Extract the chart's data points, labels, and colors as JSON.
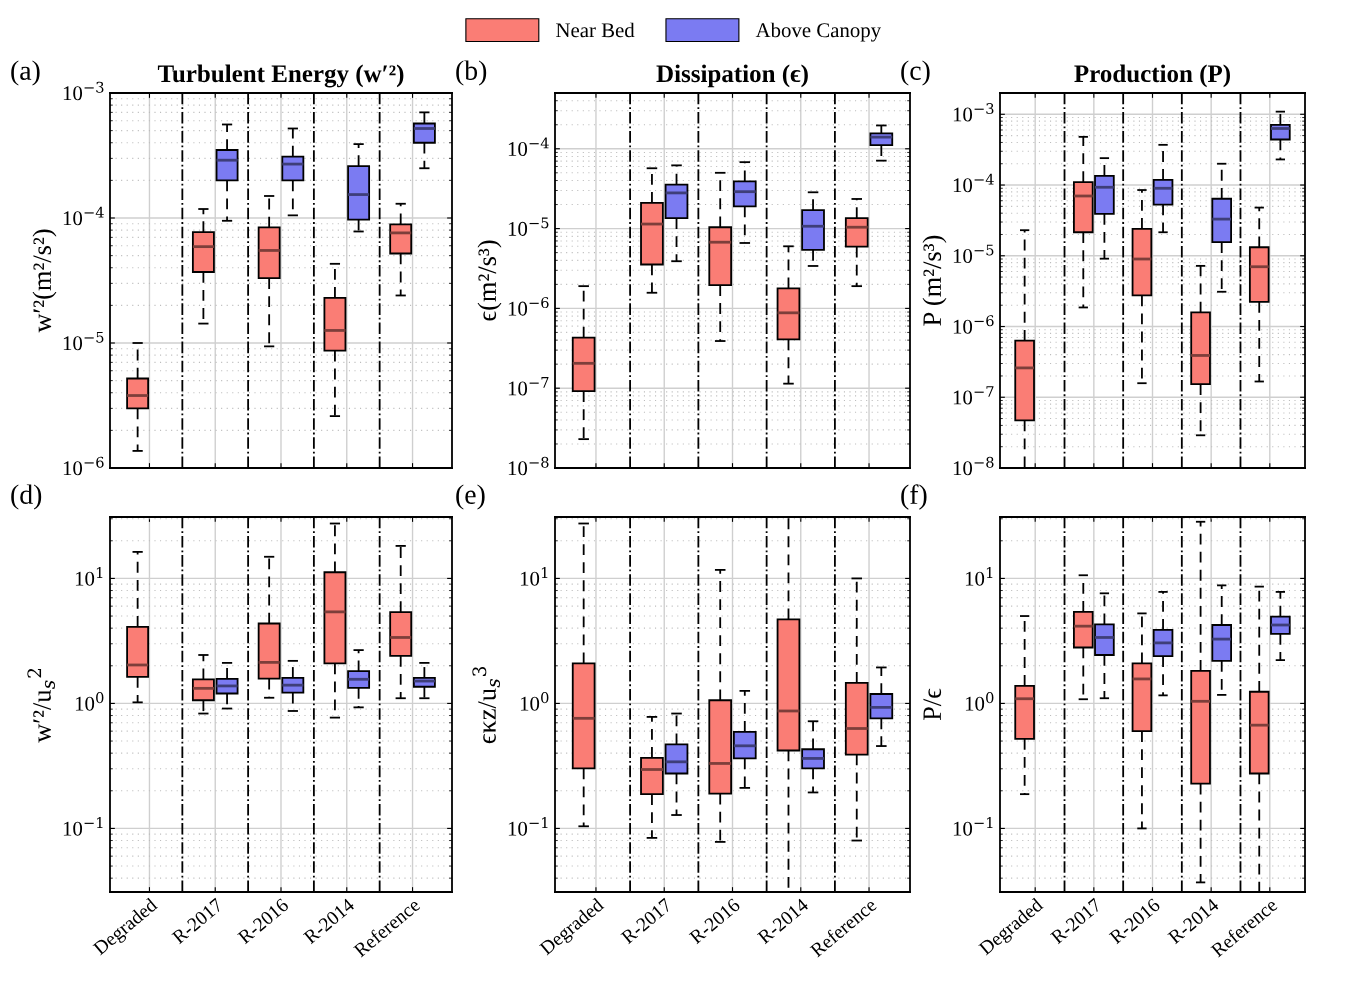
{
  "chart_data": [
    {
      "type": "box",
      "title": "Turbulent Energy (w′²)",
      "ylabel": "w′²(m²/s²)",
      "annotations": [
        "(a)"
      ],
      "categories": [
        null,
        null,
        null,
        null,
        null
      ],
      "log": true,
      "grid": true,
      "legend": "top",
      "tick_labels": "y",
      "ylim": [
        1e-06,
        0.001
      ],
      "yticks": [
        {
          "value": 1e-06,
          "label": "10$^{−6}$"
        },
        {
          "value": 1e-05,
          "label": "10$^{−5}$"
        },
        {
          "value": 0.0001,
          "label": "10$^{−4}$"
        },
        {
          "value": 0.001,
          "label": "10$^{−3}$"
        }
      ],
      "series": [
        {
          "name": "Near Bed",
          "color": "#fa7d75",
          "boxes": [
            {
              "low": 1.37e-06,
              "q1": 3e-06,
              "median": 3.8e-06,
              "q3": 5.2e-06,
              "high": 1e-05
            },
            {
              "low": 1.43e-05,
              "q1": 3.7e-05,
              "median": 5.9e-05,
              "q3": 7.7e-05,
              "high": 0.000118
            },
            {
              "low": 9.4e-06,
              "q1": 3.3e-05,
              "median": 5.5e-05,
              "q3": 8.4e-05,
              "high": 0.00015
            },
            {
              "low": 2.6e-06,
              "q1": 8.7e-06,
              "median": 1.26e-05,
              "q3": 2.3e-05,
              "high": 4.3e-05
            },
            {
              "low": 2.4e-05,
              "q1": 5.2e-05,
              "median": 7.6e-05,
              "q3": 8.9e-05,
              "high": 0.00013
            }
          ]
        },
        {
          "name": "Above Canopy",
          "color": "#7b7bf2",
          "boxes": [
            null,
            {
              "low": 9.5e-05,
              "q1": 0.0002,
              "median": 0.00029,
              "q3": 0.00035,
              "high": 0.00056
            },
            {
              "low": 0.000105,
              "q1": 0.0002,
              "median": 0.00027,
              "q3": 0.00031,
              "high": 0.00052
            },
            {
              "low": 7.8e-05,
              "q1": 9.7e-05,
              "median": 0.000154,
              "q3": 0.00026,
              "high": 0.00039
            },
            {
              "low": 0.00025,
              "q1": 0.0004,
              "median": 0.00052,
              "q3": 0.00057,
              "high": 0.0007
            }
          ]
        }
      ]
    },
    {
      "type": "box",
      "title": "Dissipation (ϵ)",
      "ylabel": "ϵ(m²/s³)",
      "annotations": [
        "(b)"
      ],
      "categories": [
        null,
        null,
        null,
        null,
        null
      ],
      "log": true,
      "grid": true,
      "tick_labels": "y",
      "ylim": [
        1e-08,
        0.0005
      ],
      "yticks": [
        {
          "value": 1e-08,
          "label": "10$^{−8}$"
        },
        {
          "value": 1e-07,
          "label": "10$^{−7}$"
        },
        {
          "value": 1e-06,
          "label": "10$^{−6}$"
        },
        {
          "value": 1e-05,
          "label": "10$^{−5}$"
        },
        {
          "value": 0.0001,
          "label": "10$^{−4}$"
        }
      ],
      "series": [
        {
          "color": "#fa7d75",
          "boxes": [
            {
              "low": 2.3e-08,
              "q1": 9.2e-08,
              "median": 2.05e-07,
              "q3": 4.3e-07,
              "high": 1.9e-06
            },
            {
              "low": 1.57e-06,
              "q1": 3.55e-06,
              "median": 1.14e-05,
              "q3": 2.1e-05,
              "high": 5.7e-05
            },
            {
              "low": 3.9e-07,
              "q1": 1.96e-06,
              "median": 6.75e-06,
              "q3": 1.04e-05,
              "high": 5e-05
            },
            {
              "low": 1.14e-07,
              "q1": 4.1e-07,
              "median": 8.8e-07,
              "q3": 1.78e-06,
              "high": 6e-06
            },
            {
              "low": 1.9e-06,
              "q1": 5.95e-06,
              "median": 1.04e-05,
              "q3": 1.35e-05,
              "high": 2.35e-05
            }
          ]
        },
        {
          "color": "#7b7bf2",
          "boxes": [
            null,
            {
              "low": 3.9e-06,
              "q1": 1.35e-05,
              "median": 2.8e-05,
              "q3": 3.55e-05,
              "high": 6.2e-05
            },
            {
              "low": 6.6e-06,
              "q1": 1.9e-05,
              "median": 2.9e-05,
              "q3": 3.9e-05,
              "high": 6.8e-05
            },
            {
              "low": 3.4e-06,
              "q1": 5.4e-06,
              "median": 1.07e-05,
              "q3": 1.7e-05,
              "high": 2.85e-05
            },
            {
              "low": 7.1e-05,
              "q1": 0.000111,
              "median": 0.00014,
              "q3": 0.000156,
              "high": 0.000196
            }
          ]
        }
      ]
    },
    {
      "type": "box",
      "title": "Production (P)",
      "ylabel": "P (m²/s³)",
      "annotations": [
        "(c)"
      ],
      "categories": [
        null,
        null,
        null,
        null,
        null
      ],
      "log": true,
      "grid": true,
      "tick_labels": "y",
      "ylim": [
        1e-08,
        0.002
      ],
      "yticks": [
        {
          "value": 1e-08,
          "label": "10$^{−8}$"
        },
        {
          "value": 1e-07,
          "label": "10$^{−7}$"
        },
        {
          "value": 1e-06,
          "label": "10$^{−6}$"
        },
        {
          "value": 1e-05,
          "label": "10$^{−5}$"
        },
        {
          "value": 0.0001,
          "label": "10$^{−4}$"
        },
        {
          "value": 0.001,
          "label": "10$^{−3}$"
        }
      ],
      "series": [
        {
          "color": "#fa7d75",
          "boxes": [
            {
              "low": 1e-08,
              "q1": 4.7e-08,
              "median": 2.6e-07,
              "q3": 6.3e-07,
              "high": 2.3e-05
            },
            {
              "low": 1.86e-06,
              "q1": 2.15e-05,
              "median": 7e-05,
              "q3": 0.00011,
              "high": 0.00048
            },
            {
              "low": 1.58e-07,
              "q1": 2.75e-06,
              "median": 9e-06,
              "q3": 2.4e-05,
              "high": 8.5e-05
            },
            {
              "low": 2.9e-08,
              "q1": 1.53e-07,
              "median": 3.9e-07,
              "q3": 1.58e-06,
              "high": 7.2e-06
            },
            {
              "low": 1.67e-07,
              "q1": 2.23e-06,
              "median": 7e-06,
              "q3": 1.32e-05,
              "high": 4.8e-05
            }
          ]
        },
        {
          "color": "#7b7bf2",
          "boxes": [
            null,
            {
              "low": 9.1e-06,
              "q1": 3.9e-05,
              "median": 9.3e-05,
              "q3": 0.000135,
              "high": 0.00024
            },
            {
              "low": 2.15e-05,
              "q1": 5.3e-05,
              "median": 9e-05,
              "q3": 0.000118,
              "high": 0.00037
            },
            {
              "low": 3.1e-06,
              "q1": 1.56e-05,
              "median": 3.3e-05,
              "q3": 6.4e-05,
              "high": 0.0002
            },
            {
              "low": 0.00023,
              "q1": 0.00044,
              "median": 0.00063,
              "q3": 0.00071,
              "high": 0.00109
            }
          ]
        }
      ]
    },
    {
      "type": "box",
      "ylabel": "w′²/u$_{s}$$^{2}$",
      "annotations": [
        "(d)"
      ],
      "categories": [
        "Degraded",
        "R-2017",
        "R-2016",
        "R-2014",
        "Reference"
      ],
      "log": true,
      "grid": true,
      "ylim": [
        0.031,
        31
      ],
      "yticks": [
        {
          "value": 0.1,
          "label": "10$^{−1}$"
        },
        {
          "value": 1,
          "label": "10$^{0}$"
        },
        {
          "value": 10,
          "label": "10$^{1}$"
        }
      ],
      "series": [
        {
          "color": "#fa7d75",
          "boxes": [
            {
              "low": 1.02,
              "q1": 1.63,
              "median": 2.03,
              "q3": 4.1,
              "high": 16.3
            },
            {
              "low": 0.83,
              "q1": 1.06,
              "median": 1.32,
              "q3": 1.56,
              "high": 2.44
            },
            {
              "low": 1.11,
              "q1": 1.58,
              "median": 2.13,
              "q3": 4.36,
              "high": 14.9
            },
            {
              "low": 0.77,
              "q1": 2.09,
              "median": 5.4,
              "q3": 11.2,
              "high": 27.5
            },
            {
              "low": 1.1,
              "q1": 2.4,
              "median": 3.37,
              "q3": 5.38,
              "high": 18.2
            }
          ]
        },
        {
          "color": "#7b7bf2",
          "boxes": [
            null,
            {
              "low": 0.91,
              "q1": 1.2,
              "median": 1.38,
              "q3": 1.57,
              "high": 2.11
            },
            {
              "low": 0.87,
              "q1": 1.22,
              "median": 1.4,
              "q3": 1.6,
              "high": 2.19
            },
            {
              "low": 0.93,
              "q1": 1.33,
              "median": 1.56,
              "q3": 1.81,
              "high": 2.67
            },
            {
              "low": 1.1,
              "q1": 1.36,
              "median": 1.51,
              "q3": 1.6,
              "high": 2.11
            }
          ]
        }
      ]
    },
    {
      "type": "box",
      "ylabel": "ϵκz/u$_{s}$$^{3}$",
      "annotations": [
        "(e)"
      ],
      "categories": [
        "Degraded",
        "R-2017",
        "R-2016",
        "R-2014",
        "Reference"
      ],
      "log": true,
      "grid": true,
      "ylim": [
        0.031,
        31
      ],
      "yticks": [
        {
          "value": 0.1,
          "label": "10$^{−1}$"
        },
        {
          "value": 1,
          "label": "10$^{0}$"
        },
        {
          "value": 10,
          "label": "10$^{1}$"
        }
      ],
      "series": [
        {
          "color": "#fa7d75",
          "boxes": [
            {
              "low": 0.104,
              "q1": 0.302,
              "median": 0.76,
              "q3": 2.09,
              "high": 27.5
            },
            {
              "low": 0.084,
              "q1": 0.188,
              "median": 0.296,
              "q3": 0.367,
              "high": 0.78
            },
            {
              "low": 0.078,
              "q1": 0.19,
              "median": 0.331,
              "q3": 1.06,
              "high": 11.7
            },
            {
              "low": 0.031,
              "q1": 0.42,
              "median": 0.87,
              "q3": 4.7,
              "high": 31
            },
            {
              "low": 0.08,
              "q1": 0.39,
              "median": 0.63,
              "q3": 1.46,
              "high": 10
            }
          ]
        },
        {
          "color": "#7b7bf2",
          "boxes": [
            null,
            {
              "low": 0.128,
              "q1": 0.275,
              "median": 0.341,
              "q3": 0.47,
              "high": 0.83
            },
            {
              "low": 0.211,
              "q1": 0.363,
              "median": 0.458,
              "q3": 0.593,
              "high": 1.26
            },
            {
              "low": 0.194,
              "q1": 0.302,
              "median": 0.363,
              "q3": 0.43,
              "high": 0.72
            },
            {
              "low": 0.456,
              "q1": 0.76,
              "median": 0.93,
              "q3": 1.19,
              "high": 1.94
            }
          ]
        }
      ]
    },
    {
      "type": "box",
      "ylabel": "P/ϵ",
      "annotations": [
        "(f)"
      ],
      "categories": [
        "Degraded",
        "R-2017",
        "R-2016",
        "R-2014",
        "Reference"
      ],
      "log": true,
      "grid": true,
      "ylim": [
        0.031,
        31
      ],
      "yticks": [
        {
          "value": 0.1,
          "label": "10$^{−1}$"
        },
        {
          "value": 1,
          "label": "10$^{0}$"
        },
        {
          "value": 10,
          "label": "10$^{1}$"
        }
      ],
      "series": [
        {
          "color": "#fa7d75",
          "boxes": [
            {
              "low": 0.188,
              "q1": 0.52,
              "median": 1.09,
              "q3": 1.38,
              "high": 5.0
            },
            {
              "low": 1.08,
              "q1": 2.8,
              "median": 4.15,
              "q3": 5.4,
              "high": 10.6
            },
            {
              "low": 0.1,
              "q1": 0.6,
              "median": 1.57,
              "q3": 2.09,
              "high": 5.25
            },
            {
              "low": 0.037,
              "q1": 0.228,
              "median": 1.04,
              "q3": 1.82,
              "high": 28.4
            },
            {
              "low": 0.031,
              "q1": 0.275,
              "median": 0.67,
              "q3": 1.24,
              "high": 8.6
            }
          ]
        },
        {
          "color": "#7b7bf2",
          "boxes": [
            null,
            {
              "low": 1.1,
              "q1": 2.44,
              "median": 3.37,
              "q3": 4.29,
              "high": 7.6
            },
            {
              "low": 1.16,
              "q1": 2.39,
              "median": 3.05,
              "q3": 3.88,
              "high": 7.8
            },
            {
              "low": 1.17,
              "q1": 2.19,
              "median": 3.27,
              "q3": 4.24,
              "high": 8.8
            },
            {
              "low": 2.22,
              "q1": 3.6,
              "median": 4.24,
              "q3": 4.94,
              "high": 7.8
            }
          ]
        }
      ]
    }
  ]
}
